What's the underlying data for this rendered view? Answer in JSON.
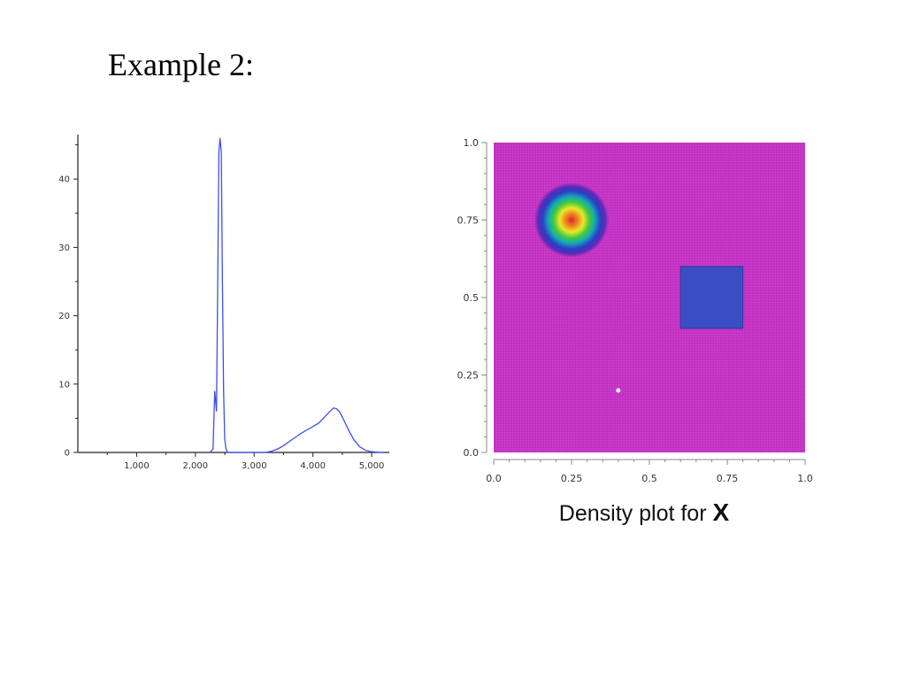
{
  "title": "Example 2:",
  "chart_data": [
    {
      "type": "line",
      "xlim": [
        0,
        5300
      ],
      "ylim": [
        0,
        46.5
      ],
      "x_ticks": [
        1000,
        2000,
        3000,
        4000,
        5000
      ],
      "x_tick_labels": [
        "1,000",
        "2,000",
        "3,000",
        "4,000",
        "5,000"
      ],
      "y_ticks": [
        0,
        10,
        20,
        30,
        40
      ],
      "y_tick_labels": [
        "0",
        "10",
        "20",
        "30",
        "40"
      ],
      "series": [
        {
          "color": "#3b4ff0",
          "x": [
            2250,
            2300,
            2330,
            2360,
            2380,
            2400,
            2420,
            2440,
            2460,
            2480,
            2500,
            2520,
            2550,
            2600,
            3000,
            3200,
            3300,
            3400,
            3500,
            3600,
            3700,
            3800,
            3900,
            4000,
            4100,
            4200,
            4300,
            4350,
            4400,
            4450,
            4500,
            4600,
            4700,
            4800,
            4900,
            5000,
            5100,
            5200
          ],
          "y": [
            0,
            0.5,
            9,
            6,
            25,
            44,
            46,
            44,
            25,
            9,
            2,
            0.5,
            0,
            0,
            0,
            0,
            0.2,
            0.5,
            1,
            1.6,
            2.2,
            2.8,
            3.3,
            3.8,
            4.3,
            5.2,
            6.1,
            6.5,
            6.4,
            6.0,
            5.2,
            3.4,
            1.8,
            0.8,
            0.3,
            0.1,
            0.02,
            0
          ]
        }
      ]
    },
    {
      "type": "heatmap",
      "title": "Density plot for X",
      "title_plain": "Density plot for",
      "title_bold": "X",
      "xlim": [
        0,
        1
      ],
      "ylim": [
        0,
        1
      ],
      "x_ticks": [
        0,
        0.25,
        0.5,
        0.75,
        1
      ],
      "x_tick_labels": [
        "0.0",
        "0.25",
        "0.5",
        "0.75",
        "1.0"
      ],
      "y_ticks": [
        0,
        0.25,
        0.5,
        0.75,
        1
      ],
      "y_tick_labels": [
        "0.0",
        "0.25",
        "0.5",
        "0.75",
        "1.0"
      ],
      "background_color": "#c433c4",
      "blob": {
        "center_x": 0.25,
        "center_y": 0.75,
        "radius": 0.12
      },
      "blob_colors": [
        "#d9262a",
        "#f08c1e",
        "#e8e82a",
        "#46c83c",
        "#14aab4",
        "#2c3cc8",
        "#5a2cb4"
      ],
      "square": {
        "x0": 0.6,
        "x1": 0.8,
        "y0": 0.4,
        "y1": 0.6,
        "color": "#3a4ec4"
      },
      "dot": {
        "x": 0.4,
        "y": 0.2,
        "color": "#ffffff"
      }
    }
  ]
}
